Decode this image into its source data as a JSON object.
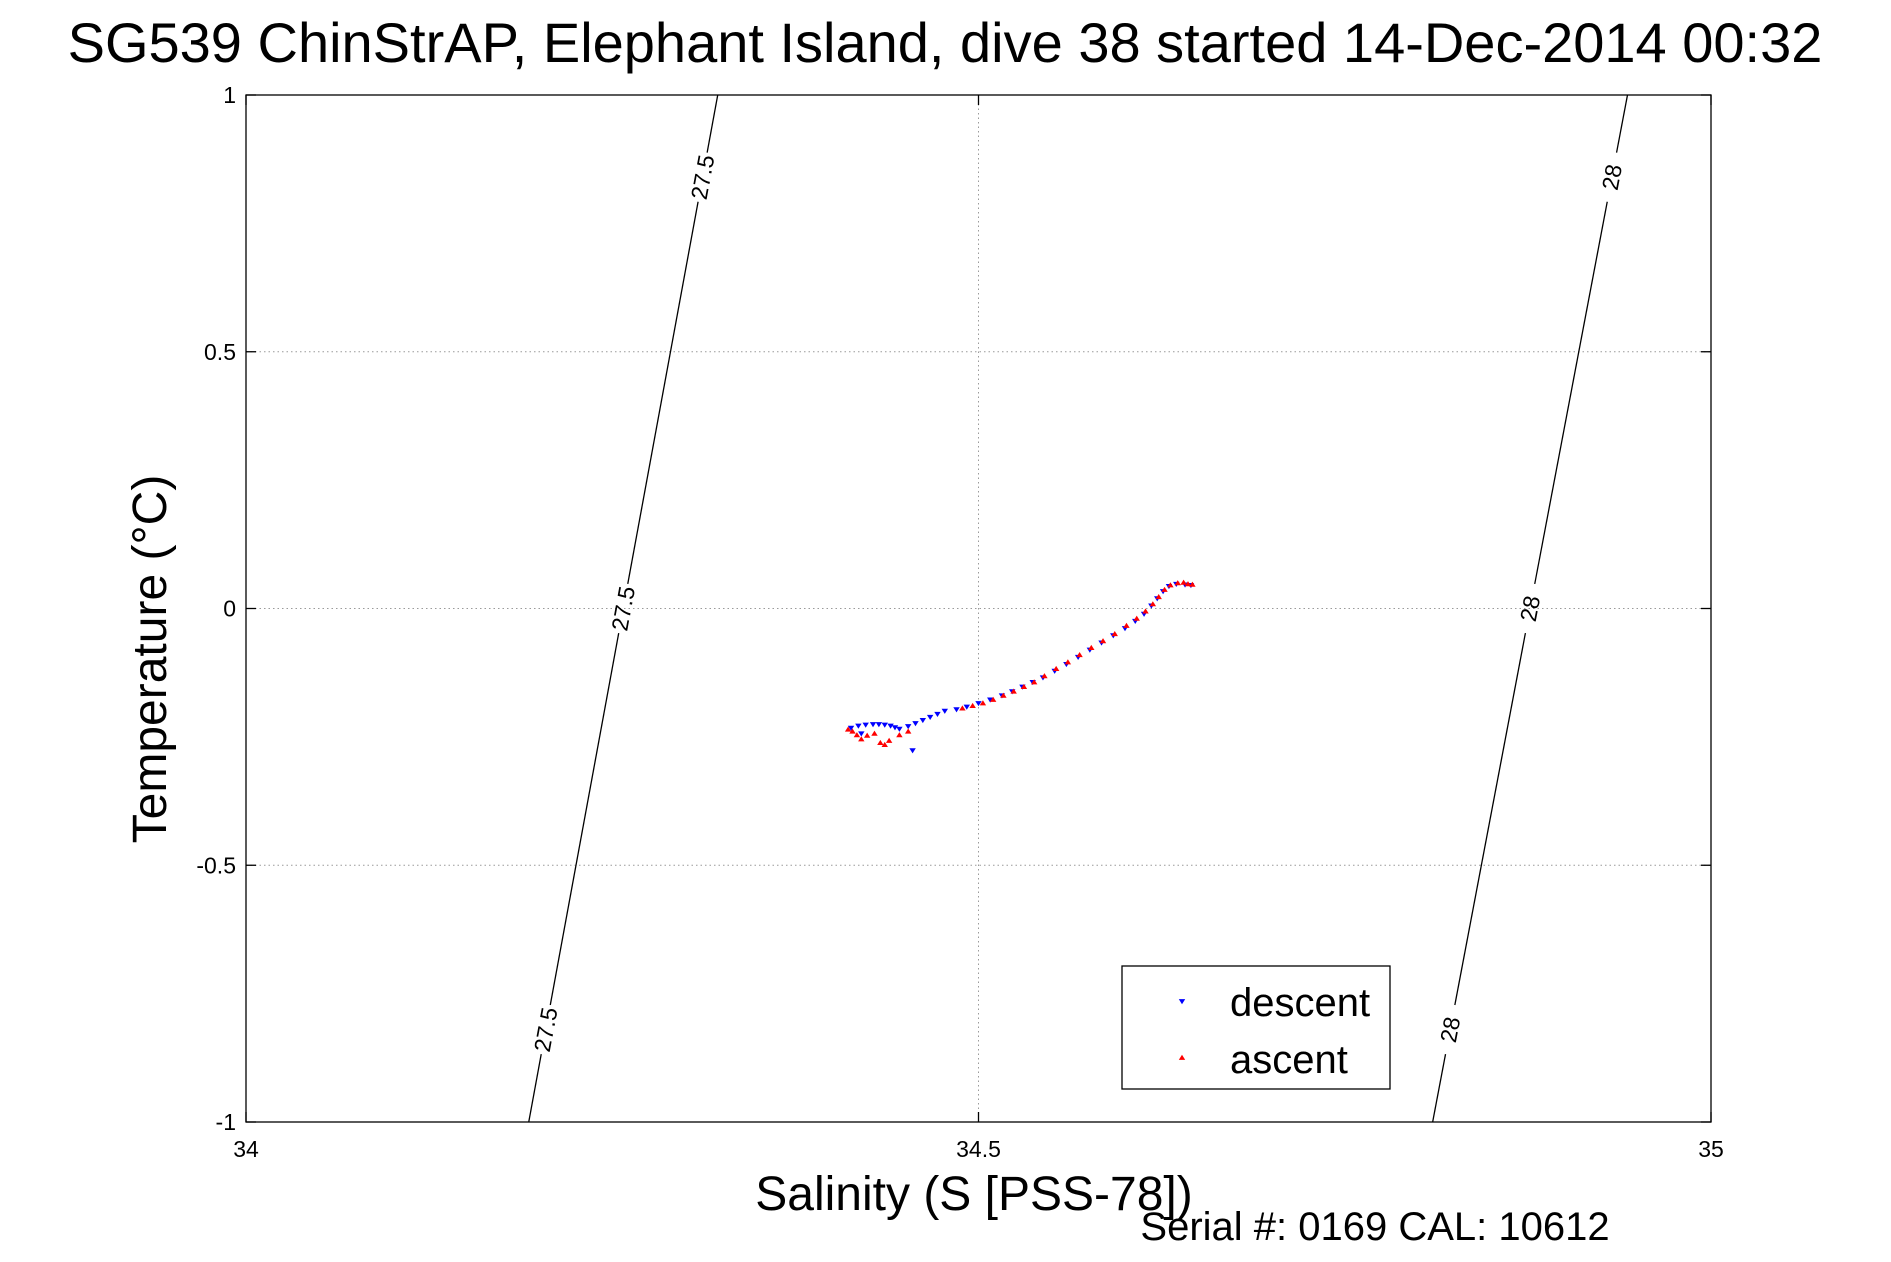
{
  "chart_data": {
    "type": "scatter",
    "title": "SG539 ChinStrAP, Elephant Island, dive 38 started 14-Dec-2014 00:32",
    "xlabel": "Salinity (S [PSS-78])",
    "ylabel": "Temperature (°C)",
    "xlim": [
      34,
      35
    ],
    "ylim": [
      -1,
      1
    ],
    "xticks": [
      34,
      34.5,
      35
    ],
    "xtick_labels": [
      "34",
      "34.5",
      "35"
    ],
    "yticks": [
      -1,
      -0.5,
      0,
      0.5,
      1
    ],
    "ytick_labels": [
      "-1",
      "-0.5",
      "0",
      "0.5",
      "1"
    ],
    "grid": true,
    "legend_position": "bottom-right",
    "series": [
      {
        "name": "descent",
        "marker": "triangle-down",
        "color": "#0000ff",
        "points": [
          [
            34.413,
            -0.232
          ],
          [
            34.418,
            -0.228
          ],
          [
            34.423,
            -0.226
          ],
          [
            34.428,
            -0.225
          ],
          [
            34.432,
            -0.225
          ],
          [
            34.436,
            -0.226
          ],
          [
            34.44,
            -0.228
          ],
          [
            34.443,
            -0.231
          ],
          [
            34.446,
            -0.234
          ],
          [
            34.452,
            -0.229
          ],
          [
            34.457,
            -0.223
          ],
          [
            34.462,
            -0.217
          ],
          [
            34.467,
            -0.211
          ],
          [
            34.472,
            -0.205
          ],
          [
            34.477,
            -0.199
          ],
          [
            34.455,
            -0.276
          ],
          [
            34.42,
            -0.243
          ],
          [
            34.485,
            -0.196
          ],
          [
            34.492,
            -0.191
          ],
          [
            34.5,
            -0.184
          ],
          [
            34.508,
            -0.177
          ],
          [
            34.516,
            -0.169
          ],
          [
            34.523,
            -0.161
          ],
          [
            34.53,
            -0.152
          ],
          [
            34.537,
            -0.143
          ],
          [
            34.544,
            -0.134
          ],
          [
            34.552,
            -0.121
          ],
          [
            34.56,
            -0.108
          ],
          [
            34.568,
            -0.094
          ],
          [
            34.576,
            -0.08
          ],
          [
            34.584,
            -0.066
          ],
          [
            34.592,
            -0.052
          ],
          [
            34.6,
            -0.038
          ],
          [
            34.607,
            -0.024
          ],
          [
            34.613,
            -0.01
          ],
          [
            34.618,
            0.006
          ],
          [
            34.622,
            0.02
          ],
          [
            34.626,
            0.034
          ],
          [
            34.63,
            0.044
          ],
          [
            34.635,
            0.048
          ],
          [
            34.641,
            0.047
          ],
          [
            34.645,
            0.046
          ]
        ]
      },
      {
        "name": "ascent",
        "marker": "triangle-up",
        "color": "#ff0000",
        "points": [
          [
            34.411,
            -0.236
          ],
          [
            34.414,
            -0.24
          ],
          [
            34.417,
            -0.247
          ],
          [
            34.42,
            -0.255
          ],
          [
            34.424,
            -0.248
          ],
          [
            34.429,
            -0.244
          ],
          [
            34.433,
            -0.262
          ],
          [
            34.436,
            -0.266
          ],
          [
            34.439,
            -0.258
          ],
          [
            34.446,
            -0.247
          ],
          [
            34.452,
            -0.24
          ],
          [
            34.489,
            -0.195
          ],
          [
            34.496,
            -0.19
          ],
          [
            34.503,
            -0.185
          ],
          [
            34.51,
            -0.178
          ],
          [
            34.517,
            -0.17
          ],
          [
            34.524,
            -0.162
          ],
          [
            34.531,
            -0.153
          ],
          [
            34.538,
            -0.144
          ],
          [
            34.545,
            -0.132
          ],
          [
            34.553,
            -0.118
          ],
          [
            34.561,
            -0.105
          ],
          [
            34.569,
            -0.091
          ],
          [
            34.577,
            -0.077
          ],
          [
            34.585,
            -0.064
          ],
          [
            34.593,
            -0.05
          ],
          [
            34.601,
            -0.034
          ],
          [
            34.608,
            -0.02
          ],
          [
            34.614,
            -0.006
          ],
          [
            34.619,
            0.008
          ],
          [
            34.623,
            0.022
          ],
          [
            34.627,
            0.036
          ],
          [
            34.631,
            0.045
          ],
          [
            34.636,
            0.049
          ],
          [
            34.64,
            0.05
          ],
          [
            34.643,
            0.047
          ],
          [
            34.646,
            0.046
          ]
        ]
      }
    ],
    "contours": [
      {
        "value": 27.5,
        "label": "27.5",
        "start": [
          34.193,
          -1.0
        ],
        "end": [
          34.322,
          1.0
        ],
        "label_positions": [
          0.09,
          0.5,
          0.92
        ]
      },
      {
        "value": 28,
        "label": "28",
        "start": [
          34.81,
          -1.0
        ],
        "end": [
          34.943,
          1.0
        ],
        "label_positions": [
          0.09,
          0.5,
          0.92
        ]
      }
    ],
    "footer": "Serial #: 0169 CAL: 10612"
  }
}
